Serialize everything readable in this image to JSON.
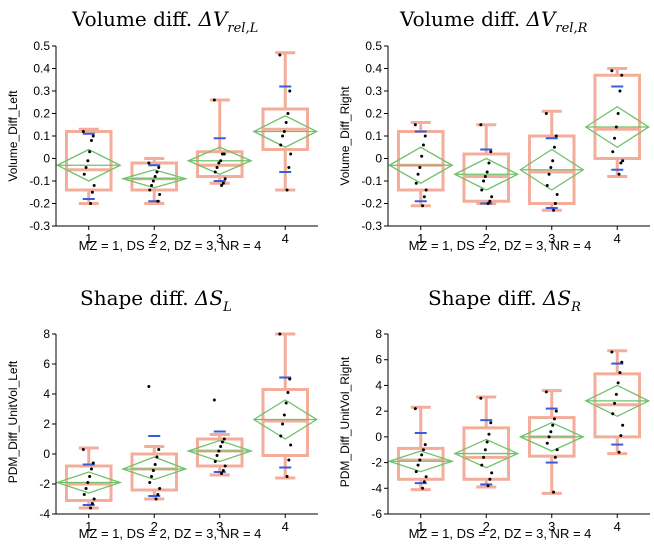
{
  "colors": {
    "box": "#f4ad9a",
    "diamond": "#6fc26a",
    "point": "#000000",
    "quantile": "#3a5de0",
    "axis": "#000000"
  },
  "chart_data": [
    {
      "type": "box",
      "title": {
        "main": "Volume diff. ",
        "symbol": "ΔV",
        "subscript": "rel,L"
      },
      "xlabel": "MZ = 1, DS = 2, DZ = 3, NR = 4",
      "ylabel": "Volume_Diff_Left",
      "categories": [
        "1",
        "2",
        "3",
        "4"
      ],
      "ylim": [
        -0.3,
        0.5
      ],
      "yticks": [
        "-0.3",
        "-0.2",
        "-0.1",
        "0",
        "0.1",
        "0.2",
        "0.3",
        "0.4",
        "0.5"
      ],
      "ytick_values": [
        -0.3,
        -0.2,
        -0.1,
        0,
        0.1,
        0.2,
        0.3,
        0.4,
        0.5
      ],
      "groups": [
        {
          "min": -0.2,
          "q1": -0.14,
          "median": -0.05,
          "q3": 0.12,
          "max": 0.13,
          "mean": -0.03,
          "ci": [
            -0.1,
            0.04
          ],
          "quantiles": [
            -0.18,
            0.11
          ],
          "points": [
            0.12,
            0.1,
            0.08,
            0.03,
            -0.01,
            -0.04,
            -0.07,
            -0.12,
            -0.15,
            -0.2
          ]
        },
        {
          "min": -0.2,
          "q1": -0.14,
          "median": -0.09,
          "q3": -0.02,
          "max": 0.0,
          "mean": -0.09,
          "ci": [
            -0.13,
            -0.05
          ],
          "quantiles": [
            -0.19,
            -0.03
          ],
          "points": [
            -0.02,
            -0.04,
            -0.06,
            -0.08,
            -0.1,
            -0.12,
            -0.14,
            -0.16,
            -0.19
          ]
        },
        {
          "min": -0.11,
          "q1": -0.08,
          "median": -0.03,
          "q3": 0.03,
          "max": 0.26,
          "mean": -0.01,
          "ci": [
            -0.07,
            0.05
          ],
          "quantiles": [
            -0.1,
            0.09
          ],
          "points": [
            0.26,
            0.02,
            0.02,
            -0.01,
            -0.02,
            -0.04,
            -0.06,
            -0.09,
            -0.11,
            -0.12
          ]
        },
        {
          "min": -0.14,
          "q1": 0.04,
          "median": 0.13,
          "q3": 0.22,
          "max": 0.47,
          "mean": 0.12,
          "ci": [
            0.05,
            0.19
          ],
          "quantiles": [
            -0.06,
            0.32
          ],
          "points": [
            0.46,
            0.3,
            0.2,
            0.16,
            0.12,
            0.1,
            0.06,
            0.02,
            -0.04,
            -0.14
          ]
        }
      ]
    },
    {
      "type": "box",
      "title": {
        "main": "Volume diff. ",
        "symbol": "ΔV",
        "subscript": "rel,R"
      },
      "xlabel": "MZ = 1, DS = 2, DZ = 3, NR = 4",
      "ylabel": "Volume_Diff_Right",
      "categories": [
        "1",
        "2",
        "3",
        "4"
      ],
      "ylim": [
        -0.3,
        0.5
      ],
      "yticks": [
        "-0.3",
        "-0.2",
        "-0.1",
        "0",
        "0.1",
        "0.2",
        "0.3",
        "0.4",
        "0.5"
      ],
      "ytick_values": [
        -0.3,
        -0.2,
        -0.1,
        0,
        0.1,
        0.2,
        0.3,
        0.4,
        0.5
      ],
      "groups": [
        {
          "min": -0.21,
          "q1": -0.14,
          "median": -0.03,
          "q3": 0.12,
          "max": 0.16,
          "mean": -0.03,
          "ci": [
            -0.11,
            0.05
          ],
          "quantiles": [
            -0.19,
            0.12
          ],
          "points": [
            0.15,
            0.1,
            0.06,
            0.01,
            -0.04,
            -0.07,
            -0.11,
            -0.14,
            -0.17,
            -0.21
          ]
        },
        {
          "min": -0.2,
          "q1": -0.19,
          "median": -0.08,
          "q3": 0.02,
          "max": 0.15,
          "mean": -0.07,
          "ci": [
            -0.14,
            0.0
          ],
          "quantiles": [
            -0.2,
            0.04
          ],
          "points": [
            0.15,
            0.03,
            -0.02,
            -0.06,
            -0.08,
            -0.1,
            -0.14,
            -0.17,
            -0.19,
            -0.2
          ]
        },
        {
          "min": -0.23,
          "q1": -0.2,
          "median": -0.06,
          "q3": 0.1,
          "max": 0.21,
          "mean": -0.05,
          "ci": [
            -0.14,
            0.04
          ],
          "quantiles": [
            -0.22,
            0.09
          ],
          "points": [
            0.2,
            0.1,
            0.05,
            -0.01,
            -0.04,
            -0.07,
            -0.12,
            -0.16,
            -0.2,
            -0.23
          ]
        },
        {
          "min": -0.08,
          "q1": 0.0,
          "median": 0.13,
          "q3": 0.37,
          "max": 0.4,
          "mean": 0.14,
          "ci": [
            0.05,
            0.23
          ],
          "quantiles": [
            -0.05,
            0.32
          ],
          "points": [
            0.39,
            0.37,
            0.3,
            0.2,
            0.14,
            0.09,
            0.03,
            -0.01,
            -0.02,
            -0.07
          ]
        }
      ]
    },
    {
      "type": "box",
      "title": {
        "main": "Shape diff. ",
        "symbol": "ΔS",
        "subscript": "L"
      },
      "xlabel": "MZ = 1, DS = 2, DZ = 3, NR = 4",
      "ylabel": "PDM_Diff_UnitVol_Left",
      "categories": [
        "1",
        "2",
        "3",
        "4"
      ],
      "ylim": [
        -4,
        8
      ],
      "yticks": [
        "-4",
        "-2",
        "0",
        "2",
        "4",
        "6",
        "8"
      ],
      "ytick_values": [
        -4,
        -2,
        0,
        2,
        4,
        6,
        8
      ],
      "groups": [
        {
          "min": -3.6,
          "q1": -3.1,
          "median": -2.0,
          "q3": -0.8,
          "max": 0.4,
          "mean": -1.9,
          "ci": [
            -2.6,
            -1.2
          ],
          "quantiles": [
            -3.4,
            -0.7
          ],
          "points": [
            0.3,
            -0.6,
            -1.0,
            -1.5,
            -1.9,
            -2.3,
            -2.7,
            -3.0,
            -3.3,
            -3.6
          ]
        },
        {
          "min": -3.0,
          "q1": -2.4,
          "median": -1.0,
          "q3": 0.0,
          "max": 0.5,
          "mean": -1.0,
          "ci": [
            -1.7,
            -0.2
          ],
          "quantiles": [
            -2.8,
            1.2
          ],
          "points": [
            4.5,
            0.3,
            -0.2,
            -0.7,
            -1.1,
            -1.5,
            -1.9,
            -2.3,
            -2.7,
            -3.0
          ]
        },
        {
          "min": -1.4,
          "q1": -0.8,
          "median": 0.2,
          "q3": 1.0,
          "max": 1.3,
          "mean": 0.2,
          "ci": [
            -0.5,
            0.9
          ],
          "quantiles": [
            -1.2,
            1.5
          ],
          "points": [
            3.6,
            1.0,
            0.8,
            0.5,
            0.2,
            -0.1,
            -0.5,
            -0.8,
            -1.1,
            -1.3
          ]
        },
        {
          "min": -1.6,
          "q1": -0.1,
          "median": 2.2,
          "q3": 4.3,
          "max": 8.0,
          "mean": 2.3,
          "ci": [
            1.0,
            3.6
          ],
          "quantiles": [
            -0.9,
            5.1
          ],
          "points": [
            8.0,
            5.0,
            4.1,
            3.4,
            2.6,
            2.0,
            1.2,
            0.6,
            -0.4,
            -1.5
          ]
        }
      ]
    },
    {
      "type": "box",
      "title": {
        "main": "Shape diff. ",
        "symbol": "ΔS",
        "subscript": "R"
      },
      "xlabel": "MZ = 1, DS = 2, DZ = 3, NR = 4",
      "ylabel": "PDM_Diff_UnitVol_Right",
      "categories": [
        "1",
        "2",
        "3",
        "4"
      ],
      "ylim": [
        -6,
        8
      ],
      "yticks": [
        "-6",
        "-4",
        "-2",
        "0",
        "2",
        "4",
        "6",
        "8"
      ],
      "ytick_values": [
        -6,
        -4,
        -2,
        0,
        2,
        4,
        6,
        8
      ],
      "groups": [
        {
          "min": -4.1,
          "q1": -3.3,
          "median": -1.8,
          "q3": -0.9,
          "max": 2.3,
          "mean": -1.9,
          "ci": [
            -2.7,
            -1.1
          ],
          "quantiles": [
            -3.6,
            0.3
          ],
          "points": [
            2.2,
            -0.6,
            -1.0,
            -1.4,
            -1.8,
            -2.2,
            -2.7,
            -3.1,
            -3.5,
            -4.0
          ]
        },
        {
          "min": -3.9,
          "q1": -3.3,
          "median": -1.6,
          "q3": 0.7,
          "max": 3.1,
          "mean": -1.3,
          "ci": [
            -2.4,
            -0.2
          ],
          "quantiles": [
            -3.7,
            1.3
          ],
          "points": [
            3.0,
            1.1,
            0.2,
            -0.4,
            -1.0,
            -1.6,
            -2.2,
            -2.8,
            -3.3,
            -3.8
          ]
        },
        {
          "min": -4.4,
          "q1": -1.5,
          "median": 0.0,
          "q3": 1.5,
          "max": 3.6,
          "mean": 0.0,
          "ci": [
            -1.1,
            1.1
          ],
          "quantiles": [
            -2.0,
            2.2
          ],
          "points": [
            3.5,
            2.0,
            1.4,
            0.9,
            0.4,
            0.0,
            -0.5,
            -1.0,
            -1.6,
            -4.3
          ]
        },
        {
          "min": -1.3,
          "q1": 0.0,
          "median": 2.5,
          "q3": 4.9,
          "max": 6.7,
          "mean": 2.8,
          "ci": [
            1.6,
            4.0
          ],
          "quantiles": [
            -0.6,
            5.7
          ],
          "points": [
            6.6,
            5.8,
            5.0,
            4.2,
            3.3,
            2.6,
            1.8,
            0.9,
            0.1,
            -1.2
          ]
        }
      ]
    }
  ]
}
